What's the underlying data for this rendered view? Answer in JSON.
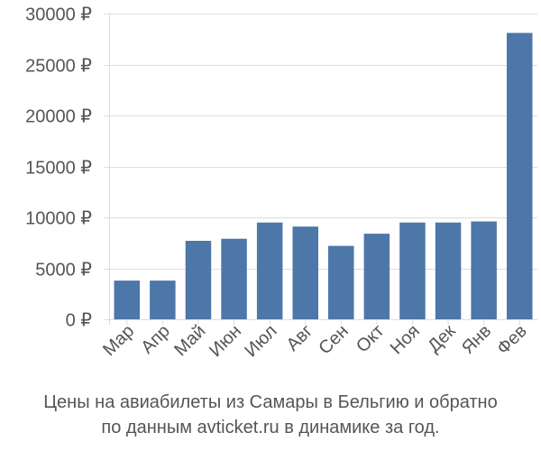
{
  "chart_data": {
    "type": "bar",
    "categories": [
      "Мар",
      "Апр",
      "Май",
      "Июн",
      "Июл",
      "Авг",
      "Сен",
      "Окт",
      "Ноя",
      "Дек",
      "Янв",
      "Фев"
    ],
    "values": [
      3800,
      3800,
      7700,
      7900,
      9500,
      9100,
      7200,
      8400,
      9500,
      9500,
      9600,
      28100
    ],
    "ylim": [
      0,
      30000
    ],
    "yticks": [
      0,
      5000,
      10000,
      15000,
      20000,
      25000,
      30000
    ],
    "ytick_labels": [
      "0 ₽",
      "5000 ₽",
      "10000 ₽",
      "15000 ₽",
      "20000 ₽",
      "25000 ₽",
      "30000 ₽"
    ],
    "grid": true,
    "colors": {
      "bar": "#4d77a8",
      "grid": "#dddddd",
      "axis_text": "#555555"
    }
  },
  "caption": {
    "line1": "Цены на авиабилеты из Самары в Бельгию и обратно",
    "line2": "по данным avticket.ru в динамике за год."
  }
}
